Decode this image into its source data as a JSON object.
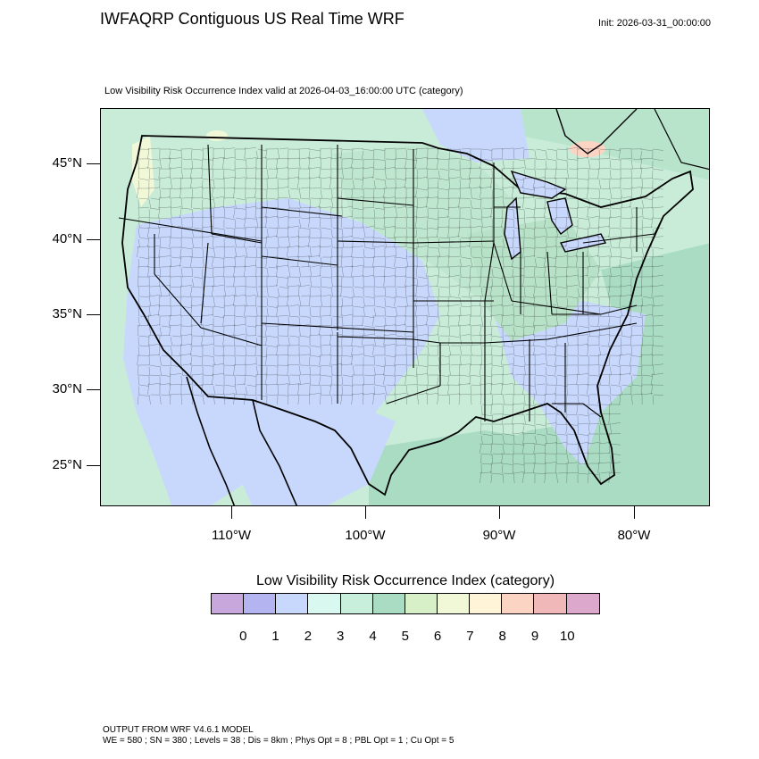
{
  "header": {
    "title": "IWFAQRP Contiguous US Real Time WRF",
    "init": "Init: 2026-03-31_00:00:00",
    "subtitle": "Low Visibility Risk Occurrence Index valid at 2026-04-03_16:00:00 UTC   (category)"
  },
  "map": {
    "lat_labels": [
      "45°N",
      "40°N",
      "35°N",
      "30°N",
      "25°N"
    ],
    "lon_labels": [
      "110°W",
      "100°W",
      "90°W",
      "80°W"
    ]
  },
  "colorbar": {
    "title": "Low Visibility Risk Occurrence Index  (category)",
    "labels": [
      "0",
      "1",
      "2",
      "3",
      "4",
      "5",
      "6",
      "7",
      "8",
      "9",
      "10"
    ],
    "colors": [
      "#c8a8dc",
      "#b4b4f0",
      "#c8d8fc",
      "#d8f8f0",
      "#c8eedc",
      "#aadcc4",
      "#d8f0c8",
      "#f0f8d8",
      "#fff4d8",
      "#fcd4c4",
      "#f0b8b8",
      "#dca8cc"
    ]
  },
  "footer": {
    "line1": "OUTPUT FROM WRF V4.6.1 MODEL",
    "line2": "WE = 580 ; SN = 380 ; Levels = 38 ; Dis = 8km ; Phys Opt = 8 ; PBL Opt = 1 ; Cu Opt = 5"
  }
}
